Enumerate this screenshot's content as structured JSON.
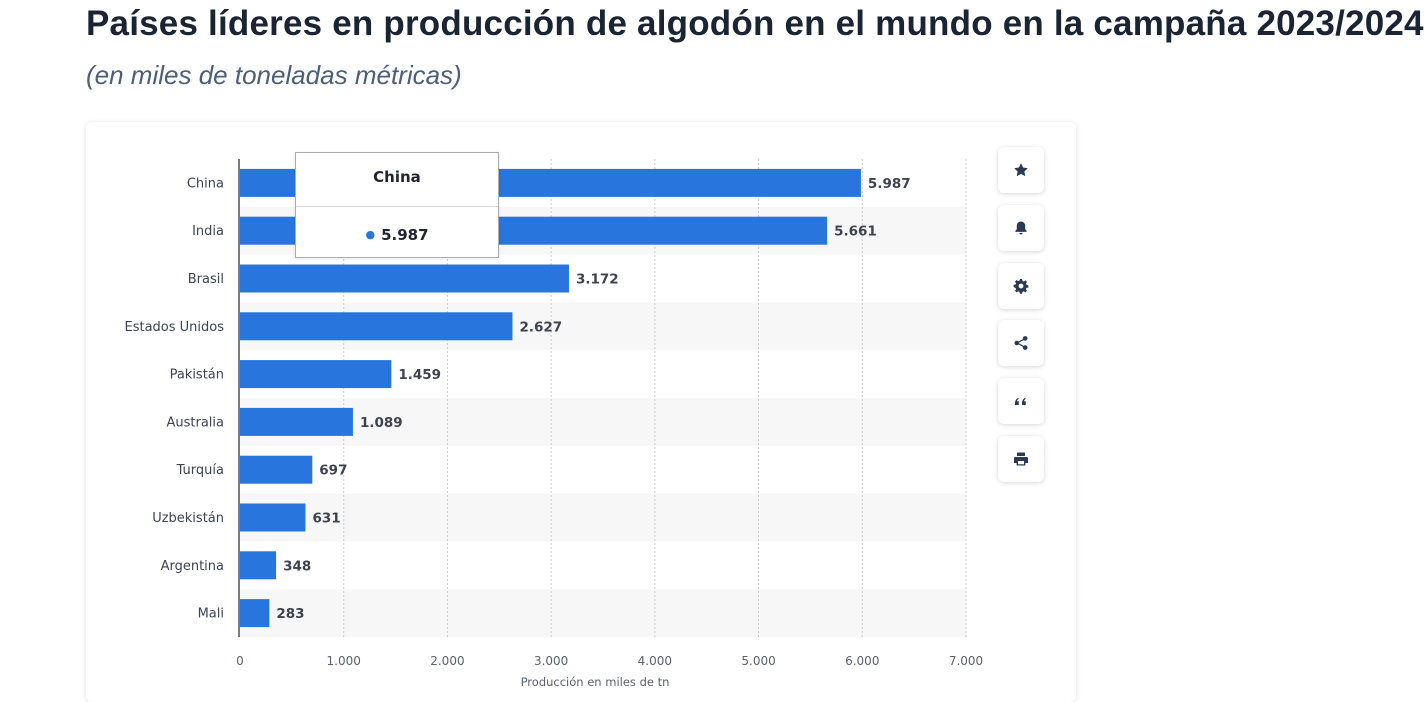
{
  "page": {
    "title": "Países líderes en producción de algodón en el mundo en la campaña 2023/2024",
    "subtitle": "(en miles de toneladas métricas)"
  },
  "tooltip": {
    "title": "China",
    "value": "5.987",
    "dot_color": "#2876dd"
  },
  "toolbar": {
    "buttons": [
      {
        "name": "favorite",
        "icon": "star-icon"
      },
      {
        "name": "notifications",
        "icon": "bell-icon"
      },
      {
        "name": "settings",
        "icon": "gear-icon"
      },
      {
        "name": "share",
        "icon": "share-icon"
      },
      {
        "name": "cite",
        "icon": "quote-icon"
      },
      {
        "name": "print",
        "icon": "printer-icon"
      }
    ]
  },
  "chart_data": {
    "type": "bar",
    "orientation": "horizontal",
    "categories": [
      "China",
      "India",
      "Brasil",
      "Estados Unidos",
      "Pakistán",
      "Australia",
      "Turquía",
      "Uzbekistán",
      "Argentina",
      "Mali"
    ],
    "values": [
      5987,
      5661,
      3172,
      2627,
      1459,
      1089,
      697,
      631,
      348,
      283
    ],
    "value_labels": [
      "5.987",
      "5.661",
      "3.172",
      "2.627",
      "1.459",
      "1.089",
      "697",
      "631",
      "348",
      "283"
    ],
    "xlim": [
      0,
      7000
    ],
    "x_ticks": [
      0,
      1000,
      2000,
      3000,
      4000,
      5000,
      6000,
      7000
    ],
    "x_tick_labels": [
      "0",
      "1.000",
      "2.000",
      "3.000",
      "4.000",
      "5.000",
      "6.000",
      "7.000"
    ],
    "xlabel": "Producción en miles de tn",
    "ylabel": "",
    "grid": true,
    "bar_color": "#2876dd",
    "stripe_color": "#f7f7f8"
  }
}
